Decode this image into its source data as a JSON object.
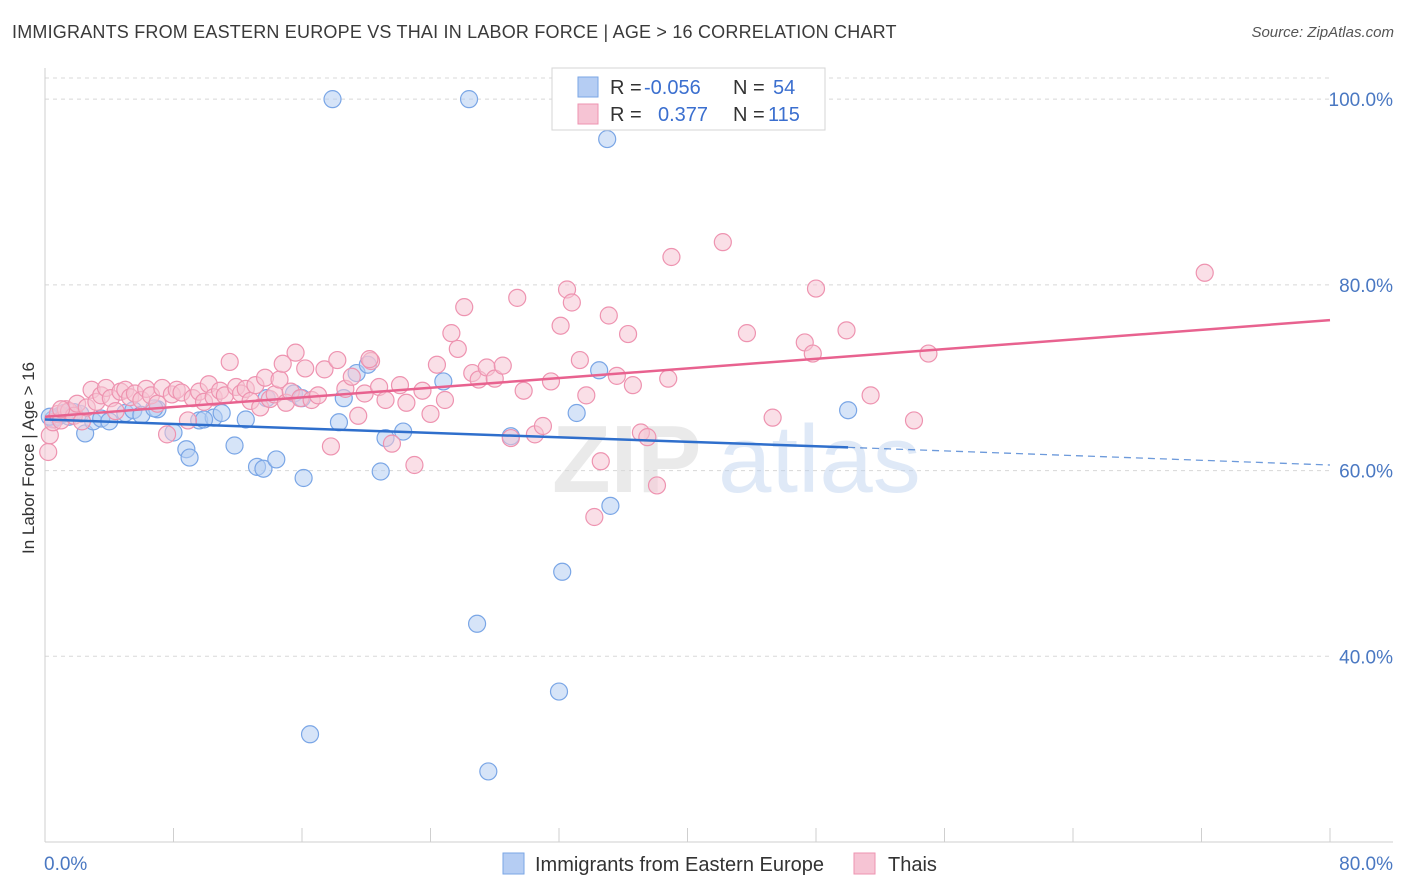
{
  "header": {
    "title": "IMMIGRANTS FROM EASTERN EUROPE VS THAI IN LABOR FORCE | AGE > 16 CORRELATION CHART",
    "source": "Source: ZipAtlas.com"
  },
  "watermark": {
    "zip": "ZIP",
    "atlas": "atlas"
  },
  "colors": {
    "blue": "#7aa6e6",
    "blue_fill": "#b5cdf3",
    "blue_line": "#2f6fcc",
    "pink": "#ee93b0",
    "pink_fill": "#f6c4d4",
    "pink_line": "#e8628f",
    "axis_text": "#4a78c2",
    "grid": "#d8d8d8"
  },
  "legend": {
    "rows": [
      {
        "r_label": "R =",
        "r_value": "-0.056",
        "n_label": "N =",
        "n_value": "54"
      },
      {
        "r_label": "R =",
        "r_value": "0.377",
        "n_label": "N =",
        "n_value": "115"
      }
    ]
  },
  "chart_data": {
    "type": "scatter",
    "title": "IMMIGRANTS FROM EASTERN EUROPE VS THAI IN LABOR FORCE | AGE > 16 CORRELATION CHART",
    "xlabel": "",
    "ylabel": "In Labor Force | Age > 16",
    "xlim": [
      0,
      80
    ],
    "ylim": [
      20,
      104
    ],
    "x_tick_labels": [
      "0.0%",
      "80.0%"
    ],
    "y_ticks": [
      40,
      60,
      80,
      100
    ],
    "y_tick_labels": [
      "40.0%",
      "60.0%",
      "80.0%",
      "100.0%"
    ],
    "grid": true,
    "legend_position": "bottom",
    "series": [
      {
        "name": "Immigrants from Eastern Europe",
        "color": "blue",
        "r": -0.056,
        "n": 54,
        "trend": {
          "x0": 0,
          "y0": 65.5,
          "x1": 50,
          "y1": 62.5,
          "dashed_to_x": 80,
          "dashed_to_y": 60.6
        },
        "points": [
          [
            0.5,
            65.5
          ],
          [
            0.8,
            65.8
          ],
          [
            1.0,
            66.0
          ],
          [
            1.2,
            66.2
          ],
          [
            1.5,
            65.8
          ],
          [
            1.8,
            66.3
          ],
          [
            2.2,
            66.1
          ],
          [
            2.5,
            64.0
          ],
          [
            3.0,
            65.3
          ],
          [
            3.5,
            65.6
          ],
          [
            4.0,
            65.3
          ],
          [
            5.0,
            66.2
          ],
          [
            5.5,
            66.5
          ],
          [
            6.0,
            66.0
          ],
          [
            7.0,
            66.6
          ],
          [
            8.0,
            64.1
          ],
          [
            8.8,
            62.3
          ],
          [
            9.0,
            61.4
          ],
          [
            9.6,
            65.4
          ],
          [
            10.5,
            65.7
          ],
          [
            11.0,
            66.2
          ],
          [
            11.8,
            62.7
          ],
          [
            12.5,
            65.5
          ],
          [
            13.2,
            60.4
          ],
          [
            13.6,
            60.2
          ],
          [
            13.8,
            67.8
          ],
          [
            14.4,
            61.2
          ],
          [
            15.5,
            68.3
          ],
          [
            16.0,
            67.8
          ],
          [
            16.1,
            59.2
          ],
          [
            16.5,
            31.6
          ],
          [
            17.9,
            100.0
          ],
          [
            18.3,
            65.2
          ],
          [
            18.6,
            67.8
          ],
          [
            19.4,
            70.5
          ],
          [
            20.1,
            71.4
          ],
          [
            20.9,
            59.9
          ],
          [
            21.2,
            63.5
          ],
          [
            22.3,
            64.2
          ],
          [
            24.8,
            69.6
          ],
          [
            26.4,
            100.0
          ],
          [
            26.9,
            43.5
          ],
          [
            27.6,
            27.6
          ],
          [
            29.0,
            63.7
          ],
          [
            32.0,
            36.2
          ],
          [
            32.2,
            49.1
          ],
          [
            33.1,
            66.2
          ],
          [
            34.5,
            70.8
          ],
          [
            35.0,
            95.7
          ],
          [
            35.2,
            56.2
          ],
          [
            50.0,
            66.5
          ],
          [
            0.3,
            65.8
          ],
          [
            6.8,
            66.7
          ],
          [
            9.9,
            65.5
          ]
        ]
      },
      {
        "name": "Thais",
        "color": "pink",
        "r": 0.377,
        "n": 115,
        "trend": {
          "x0": 0,
          "y0": 65.8,
          "x1": 80,
          "y1": 76.2
        },
        "points": [
          [
            0.2,
            62.0
          ],
          [
            0.3,
            63.8
          ],
          [
            0.5,
            65.2
          ],
          [
            0.8,
            66.1
          ],
          [
            1.0,
            65.4
          ],
          [
            1.3,
            66.6
          ],
          [
            1.5,
            66.4
          ],
          [
            1.8,
            65.9
          ],
          [
            2.0,
            67.2
          ],
          [
            2.3,
            65.3
          ],
          [
            2.6,
            66.8
          ],
          [
            2.9,
            68.7
          ],
          [
            3.2,
            67.4
          ],
          [
            3.5,
            68.1
          ],
          [
            3.8,
            68.9
          ],
          [
            4.1,
            67.8
          ],
          [
            4.4,
            66.4
          ],
          [
            4.7,
            68.5
          ],
          [
            5.0,
            68.7
          ],
          [
            5.3,
            67.9
          ],
          [
            5.6,
            68.3
          ],
          [
            6.0,
            67.6
          ],
          [
            6.3,
            68.8
          ],
          [
            6.6,
            68.1
          ],
          [
            7.0,
            67.2
          ],
          [
            7.3,
            68.9
          ],
          [
            7.6,
            63.9
          ],
          [
            7.9,
            68.2
          ],
          [
            8.2,
            68.7
          ],
          [
            8.5,
            68.4
          ],
          [
            8.9,
            65.4
          ],
          [
            9.2,
            67.8
          ],
          [
            9.6,
            68.5
          ],
          [
            9.9,
            67.4
          ],
          [
            10.2,
            69.3
          ],
          [
            10.5,
            67.9
          ],
          [
            10.9,
            68.6
          ],
          [
            11.2,
            68.1
          ],
          [
            11.5,
            71.7
          ],
          [
            11.9,
            69.0
          ],
          [
            12.2,
            68.3
          ],
          [
            12.5,
            68.8
          ],
          [
            12.8,
            67.5
          ],
          [
            13.1,
            69.2
          ],
          [
            13.4,
            66.8
          ],
          [
            13.7,
            70.0
          ],
          [
            14.0,
            67.7
          ],
          [
            14.3,
            68.2
          ],
          [
            14.6,
            69.8
          ],
          [
            15.0,
            67.3
          ],
          [
            15.3,
            68.5
          ],
          [
            15.6,
            72.7
          ],
          [
            15.9,
            67.8
          ],
          [
            16.2,
            71.0
          ],
          [
            16.6,
            67.6
          ],
          [
            17.0,
            68.1
          ],
          [
            17.4,
            70.9
          ],
          [
            17.8,
            62.6
          ],
          [
            18.2,
            71.9
          ],
          [
            18.7,
            68.8
          ],
          [
            19.1,
            70.1
          ],
          [
            19.5,
            65.9
          ],
          [
            19.9,
            68.3
          ],
          [
            20.3,
            71.8
          ],
          [
            20.8,
            69.0
          ],
          [
            21.2,
            67.6
          ],
          [
            21.6,
            62.9
          ],
          [
            22.1,
            69.2
          ],
          [
            22.5,
            67.3
          ],
          [
            23.0,
            60.6
          ],
          [
            23.5,
            68.6
          ],
          [
            24.0,
            66.1
          ],
          [
            24.4,
            71.4
          ],
          [
            24.9,
            67.6
          ],
          [
            25.3,
            74.8
          ],
          [
            25.7,
            73.1
          ],
          [
            26.1,
            77.6
          ],
          [
            26.6,
            70.5
          ],
          [
            27.0,
            69.8
          ],
          [
            27.5,
            71.1
          ],
          [
            28.0,
            69.9
          ],
          [
            28.5,
            71.3
          ],
          [
            29.0,
            63.5
          ],
          [
            29.4,
            78.6
          ],
          [
            29.8,
            68.6
          ],
          [
            30.5,
            63.9
          ],
          [
            31.0,
            64.8
          ],
          [
            31.5,
            69.6
          ],
          [
            32.1,
            75.6
          ],
          [
            32.5,
            79.5
          ],
          [
            32.8,
            78.1
          ],
          [
            33.3,
            71.9
          ],
          [
            33.7,
            68.1
          ],
          [
            34.2,
            55.0
          ],
          [
            34.6,
            61.0
          ],
          [
            35.1,
            76.7
          ],
          [
            35.6,
            70.2
          ],
          [
            36.3,
            74.7
          ],
          [
            36.6,
            69.2
          ],
          [
            37.1,
            64.1
          ],
          [
            37.5,
            63.6
          ],
          [
            38.1,
            58.4
          ],
          [
            38.8,
            69.9
          ],
          [
            39.0,
            83.0
          ],
          [
            42.2,
            84.6
          ],
          [
            43.7,
            74.8
          ],
          [
            45.3,
            65.7
          ],
          [
            47.3,
            73.8
          ],
          [
            47.8,
            72.6
          ],
          [
            48.0,
            79.6
          ],
          [
            49.9,
            75.1
          ],
          [
            51.4,
            68.1
          ],
          [
            54.1,
            65.4
          ],
          [
            55.0,
            72.6
          ],
          [
            72.2,
            81.3
          ],
          [
            1.0,
            66.6
          ],
          [
            20.2,
            72.0
          ],
          [
            14.8,
            71.5
          ]
        ]
      }
    ]
  }
}
